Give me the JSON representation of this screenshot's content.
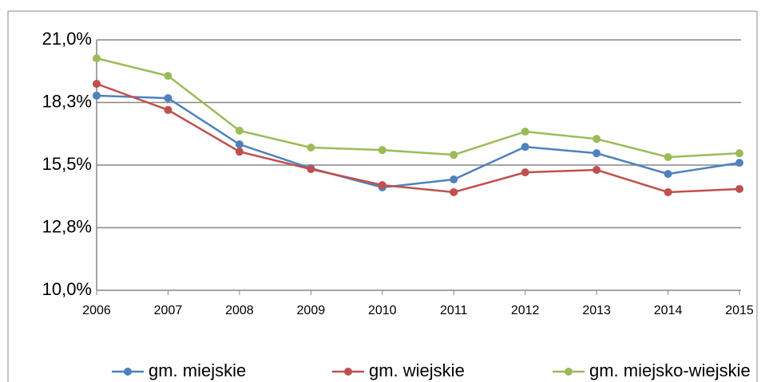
{
  "chart_data": {
    "type": "line",
    "categories": [
      "2006",
      "2007",
      "2008",
      "2009",
      "2010",
      "2011",
      "2012",
      "2013",
      "2014",
      "2015"
    ],
    "series": [
      {
        "name": "gm. miejskie",
        "color": "#4f81bd",
        "values": [
          18.55,
          18.44,
          16.41,
          15.36,
          14.52,
          14.87,
          16.3,
          16.02,
          15.11,
          15.6
        ]
      },
      {
        "name": "gm. wiejskie",
        "color": "#c0504d",
        "values": [
          19.07,
          17.92,
          16.09,
          15.32,
          14.62,
          14.31,
          15.18,
          15.29,
          14.31,
          14.45
        ]
      },
      {
        "name": "gm. miejsko-wiejskie",
        "color": "#9bbb59",
        "values": [
          20.19,
          19.42,
          17.01,
          16.27,
          16.16,
          15.95,
          16.97,
          16.65,
          15.85,
          16.02
        ]
      }
    ],
    "ylim": [
      10,
      21
    ],
    "yticks": [
      {
        "value": 10,
        "label": "10,0%"
      },
      {
        "value": 12.75,
        "label": "12,8%"
      },
      {
        "value": 15.5,
        "label": "15,5%"
      },
      {
        "value": 18.25,
        "label": "18,3%"
      },
      {
        "value": 21,
        "label": "21,0%"
      }
    ],
    "grid": true,
    "legend": "bottom"
  }
}
